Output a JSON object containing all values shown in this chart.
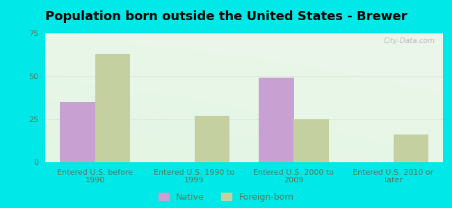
{
  "title": "Population born outside the United States - Brewer",
  "categories": [
    "Entered U.S. before\n1990",
    "Entered U.S. 1990 to\n1999",
    "Entered U.S. 2000 to\n2009",
    "Entered U.S. 2010 or\nlater"
  ],
  "native_values": [
    35,
    0,
    49,
    0
  ],
  "foreign_values": [
    63,
    27,
    25,
    16
  ],
  "native_color": "#c8a0d2",
  "foreign_color": "#c5d0a0",
  "background_outer": "#00e8e8",
  "ylim": [
    0,
    75
  ],
  "yticks": [
    0,
    25,
    50,
    75
  ],
  "bar_width": 0.35,
  "watermark": "City-Data.com",
  "legend_native": "Native",
  "legend_foreign": "Foreign-born",
  "title_fontsize": 13,
  "tick_fontsize": 8,
  "legend_fontsize": 9,
  "grid_color": "#e0e8e0"
}
